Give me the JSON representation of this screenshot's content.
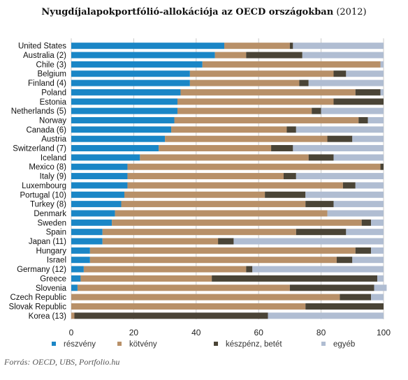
{
  "title": "Nyugdíjalapokportfólió-allokációja az OECD országokban",
  "title_year": "(2012)",
  "source": "Forrás: OECD, UBS, Portfolio.hu",
  "chart_data": {
    "type": "bar",
    "orientation": "horizontal",
    "stacked": true,
    "xlim": [
      0,
      100
    ],
    "xticks": [
      0,
      20,
      40,
      60,
      80,
      100
    ],
    "grid": true,
    "legend_position": "bottom",
    "categories": [
      "United States",
      "Australia (2)",
      "Chile (3)",
      "Belgium",
      "Finland (4)",
      "Poland",
      "Estonia",
      "Netherlands (5)",
      "Norway",
      "Canada (6)",
      "Austria",
      "Switzerland (7)",
      "Iceland",
      "Mexico (8)",
      "Italy (9)",
      "Luxembourg",
      "Portugal (10)",
      "Turkey (8)",
      "Denmark",
      "Sweden",
      "Spain",
      "Japan (11)",
      "Hungary",
      "Israel",
      "Germany (12)",
      "Greece",
      "Slovenia",
      "Czech Republic",
      "Slovak Republic",
      "Korea (13)"
    ],
    "series": [
      {
        "name": "részvény",
        "color": "#1a86c6",
        "values": [
          49,
          46,
          42,
          38,
          38,
          35,
          34,
          34,
          33,
          32,
          30,
          28,
          22,
          18,
          18,
          18,
          17,
          16,
          14,
          13,
          10,
          10,
          6,
          6,
          4,
          3,
          2,
          0,
          0,
          0
        ]
      },
      {
        "name": "kötvény",
        "color": "#b89068",
        "values": [
          21,
          10,
          57,
          46,
          35,
          56,
          50,
          43,
          59,
          37,
          52,
          36,
          54,
          81,
          50,
          69,
          45,
          59,
          68,
          80,
          62,
          37,
          85,
          79,
          52,
          42,
          68,
          86,
          75,
          1
        ]
      },
      {
        "name": "készpénz, betét",
        "color": "#4a4436",
        "values": [
          1,
          18,
          0,
          4,
          3,
          8,
          16,
          3,
          3,
          3,
          8,
          7,
          8,
          1,
          4,
          4,
          13,
          9,
          0,
          3,
          16,
          5,
          5,
          5,
          2,
          53,
          27,
          10,
          25,
          62
        ]
      },
      {
        "name": "egyéb",
        "color": "#b0bdd2",
        "values": [
          29,
          26,
          1,
          12,
          24,
          1,
          0,
          20,
          5,
          28,
          10,
          29,
          16,
          0,
          28,
          9,
          25,
          16,
          18,
          4,
          12,
          48,
          4,
          10,
          42,
          2,
          4,
          4,
          0,
          37
        ]
      }
    ]
  }
}
